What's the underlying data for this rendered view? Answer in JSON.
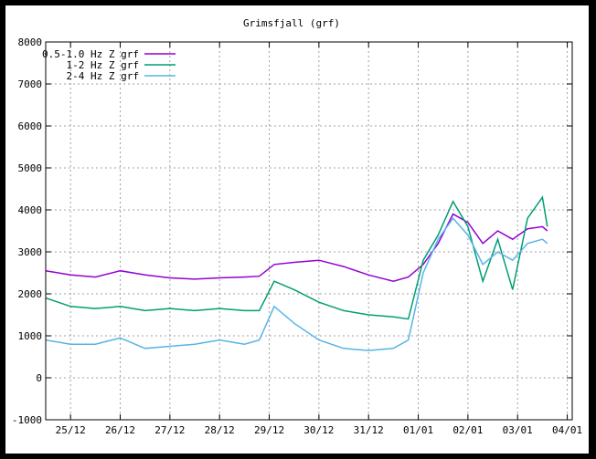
{
  "chart_data": {
    "type": "line",
    "title": "Grimsfjall (grf)",
    "xlabel": "",
    "ylabel": "",
    "ylim": [
      -1000,
      8000
    ],
    "yticks": [
      -1000,
      0,
      1000,
      2000,
      3000,
      4000,
      5000,
      6000,
      7000,
      8000
    ],
    "xlim": [
      0,
      10.6
    ],
    "xticks": [
      {
        "label": "25/12",
        "x": 0.5
      },
      {
        "label": "26/12",
        "x": 1.5
      },
      {
        "label": "27/12",
        "x": 2.5
      },
      {
        "label": "28/12",
        "x": 3.5
      },
      {
        "label": "29/12",
        "x": 4.5
      },
      {
        "label": "30/12",
        "x": 5.5
      },
      {
        "label": "31/12",
        "x": 6.5
      },
      {
        "label": "01/01",
        "x": 7.5
      },
      {
        "label": "02/01",
        "x": 8.5
      },
      {
        "label": "03/01",
        "x": 9.5
      },
      {
        "label": "04/01",
        "x": 10.5
      }
    ],
    "grid": true,
    "legend_position": "top-left",
    "series": [
      {
        "name": "0.5-1.0 Hz Z grf",
        "color": "#9400d3",
        "points": [
          [
            0,
            2550
          ],
          [
            0.5,
            2450
          ],
          [
            1.0,
            2400
          ],
          [
            1.5,
            2550
          ],
          [
            2.0,
            2450
          ],
          [
            2.5,
            2380
          ],
          [
            3.0,
            2350
          ],
          [
            3.5,
            2380
          ],
          [
            4.0,
            2400
          ],
          [
            4.3,
            2420
          ],
          [
            4.6,
            2700
          ],
          [
            5.0,
            2750
          ],
          [
            5.5,
            2800
          ],
          [
            6.0,
            2650
          ],
          [
            6.5,
            2450
          ],
          [
            7.0,
            2300
          ],
          [
            7.3,
            2400
          ],
          [
            7.6,
            2700
          ],
          [
            7.9,
            3200
          ],
          [
            8.2,
            3900
          ],
          [
            8.5,
            3700
          ],
          [
            8.8,
            3200
          ],
          [
            9.1,
            3500
          ],
          [
            9.4,
            3300
          ],
          [
            9.7,
            3550
          ],
          [
            10.0,
            3600
          ],
          [
            10.1,
            3500
          ]
        ]
      },
      {
        "name": "1-2 Hz Z grf",
        "color": "#009e73",
        "points": [
          [
            0,
            1900
          ],
          [
            0.5,
            1700
          ],
          [
            1.0,
            1650
          ],
          [
            1.5,
            1700
          ],
          [
            2.0,
            1600
          ],
          [
            2.5,
            1650
          ],
          [
            3.0,
            1600
          ],
          [
            3.5,
            1650
          ],
          [
            4.0,
            1600
          ],
          [
            4.3,
            1600
          ],
          [
            4.6,
            2300
          ],
          [
            5.0,
            2100
          ],
          [
            5.5,
            1800
          ],
          [
            6.0,
            1600
          ],
          [
            6.5,
            1500
          ],
          [
            7.0,
            1450
          ],
          [
            7.3,
            1400
          ],
          [
            7.6,
            2800
          ],
          [
            7.9,
            3400
          ],
          [
            8.2,
            4200
          ],
          [
            8.5,
            3600
          ],
          [
            8.8,
            2300
          ],
          [
            9.1,
            3300
          ],
          [
            9.4,
            2100
          ],
          [
            9.7,
            3800
          ],
          [
            10.0,
            4300
          ],
          [
            10.1,
            3600
          ]
        ]
      },
      {
        "name": "2-4 Hz Z grf",
        "color": "#56b4e9",
        "points": [
          [
            0,
            900
          ],
          [
            0.5,
            800
          ],
          [
            1.0,
            800
          ],
          [
            1.5,
            950
          ],
          [
            2.0,
            700
          ],
          [
            2.5,
            750
          ],
          [
            3.0,
            800
          ],
          [
            3.5,
            900
          ],
          [
            4.0,
            800
          ],
          [
            4.3,
            900
          ],
          [
            4.6,
            1700
          ],
          [
            5.0,
            1300
          ],
          [
            5.5,
            900
          ],
          [
            6.0,
            700
          ],
          [
            6.5,
            650
          ],
          [
            7.0,
            700
          ],
          [
            7.3,
            900
          ],
          [
            7.6,
            2500
          ],
          [
            7.9,
            3300
          ],
          [
            8.2,
            3800
          ],
          [
            8.5,
            3400
          ],
          [
            8.8,
            2700
          ],
          [
            9.1,
            3000
          ],
          [
            9.4,
            2800
          ],
          [
            9.7,
            3200
          ],
          [
            10.0,
            3300
          ],
          [
            10.1,
            3200
          ]
        ]
      }
    ]
  }
}
